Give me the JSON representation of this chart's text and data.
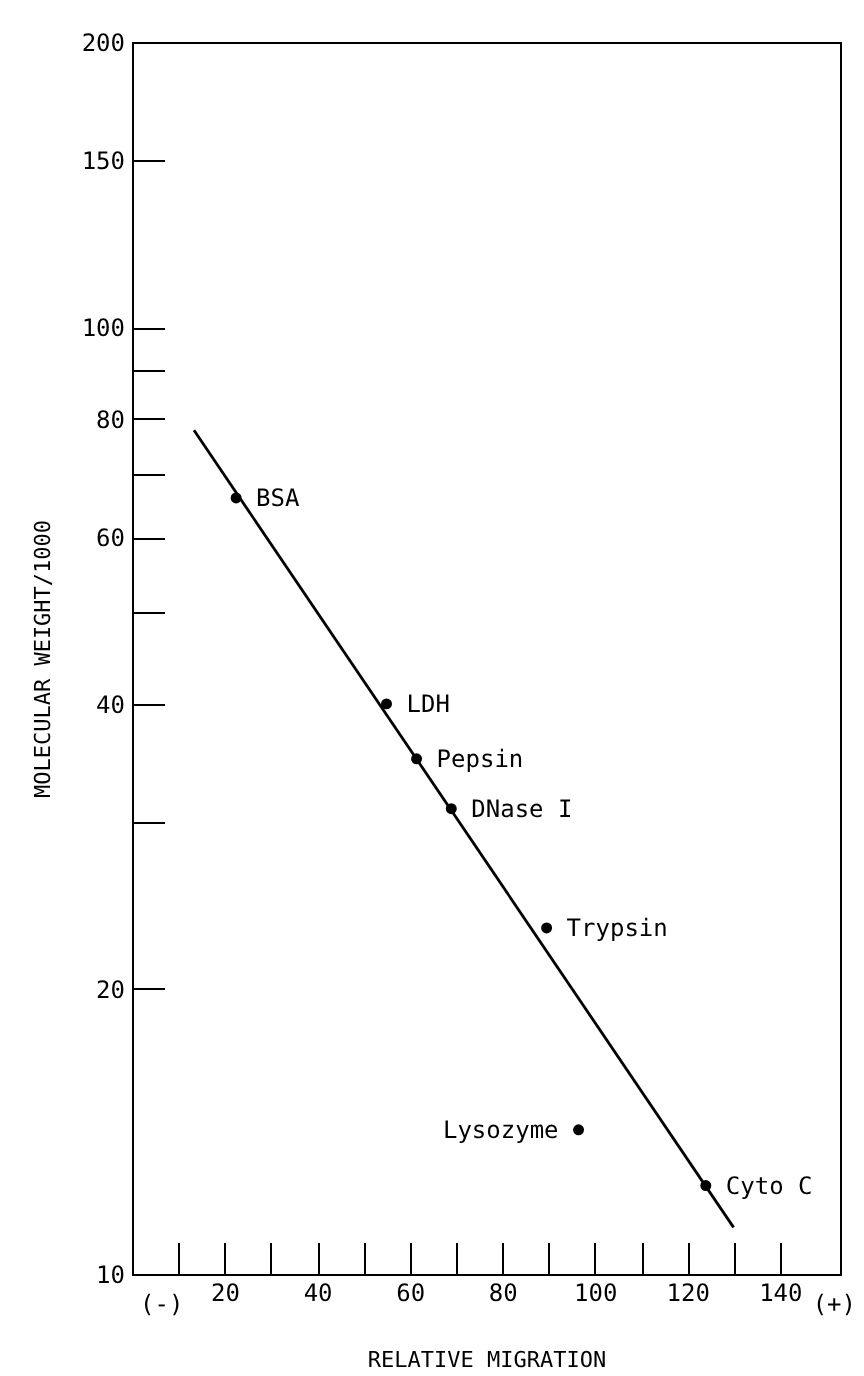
{
  "chart_data": {
    "type": "scatter",
    "xlabel": "RELATIVE MIGRATION",
    "ylabel": "MOLECULAR WEIGHT/1000",
    "log": "y",
    "grid": false,
    "legend": false,
    "marker": "circle",
    "xlim": [
      0,
      153
    ],
    "ylim": [
      10,
      200
    ],
    "xticks": [
      {
        "value": 10,
        "label": null
      },
      20,
      {
        "value": 30,
        "label": null
      },
      40,
      {
        "value": 50,
        "label": null
      },
      60,
      {
        "value": 70,
        "label": null
      },
      80,
      {
        "value": 90,
        "label": null
      },
      100,
      {
        "value": 110,
        "label": null
      },
      120,
      {
        "value": 130,
        "label": null
      },
      140
    ],
    "yticks": [
      10,
      20,
      {
        "value": 30,
        "label": null
      },
      40,
      {
        "value": 50,
        "label": null
      },
      60,
      {
        "value": 70,
        "label": null
      },
      80,
      {
        "value": 90,
        "label": null
      },
      100,
      150,
      200
    ],
    "series": [
      {
        "color": "#000000",
        "x": [
          22.5,
          55,
          61.5,
          69,
          89.6,
          96.5,
          124
        ],
        "values": [
          66,
          40,
          35,
          31,
          23.2,
          14.2,
          12.4
        ]
      },
      {
        "type": "line",
        "color": "#000000",
        "line_style": "solid",
        "marker": "none",
        "x": [
          13.4,
          130
        ],
        "values": [
          77.8,
          11.2
        ]
      }
    ],
    "annotations": [
      {
        "text": "BSA",
        "x": 22.5,
        "y": 66
      },
      {
        "text": "LDH",
        "x": 55,
        "y": 40
      },
      {
        "text": "Pepsin",
        "x": 61.5,
        "y": 35
      },
      {
        "text": "DNase I",
        "x": 69,
        "y": 31
      },
      {
        "text": "Trypsin",
        "x": 89.6,
        "y": 23.2
      },
      {
        "text": "Lysozyme",
        "x": 96.5,
        "y": 14.2
      },
      {
        "text": "Cyto C",
        "x": 124,
        "y": 12.4
      },
      "(-)",
      "(+)"
    ]
  }
}
